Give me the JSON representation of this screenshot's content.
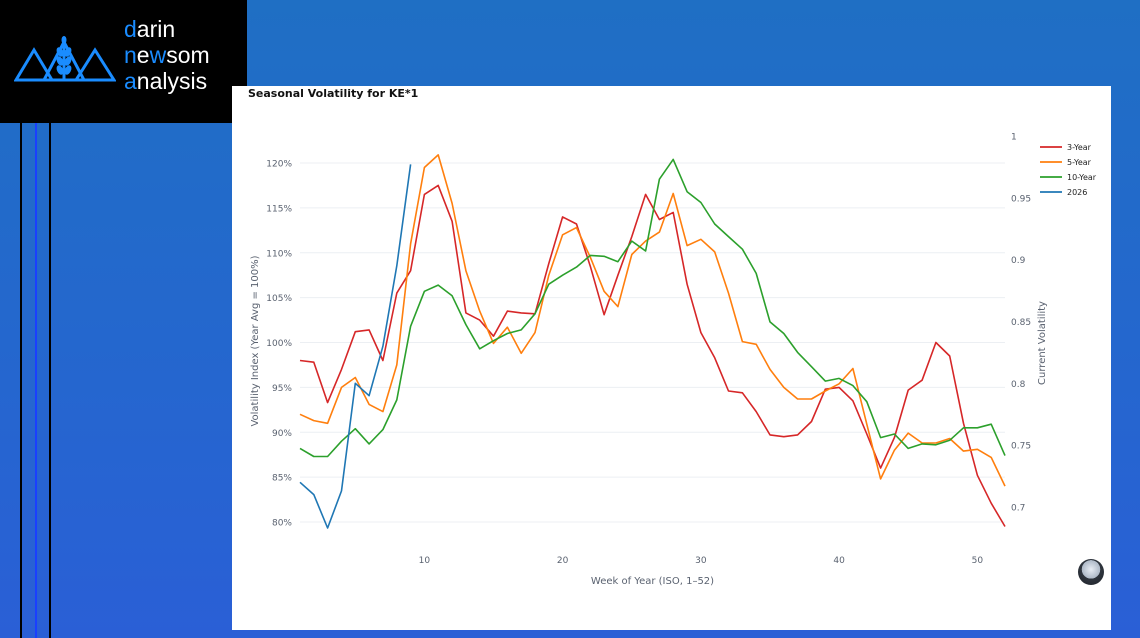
{
  "brand": {
    "line1_first": "d",
    "line1_rest": "arin",
    "line2_first": "n",
    "line2_mid": "e",
    "line2_w": "w",
    "line2_rest": "som",
    "line3_first": "a",
    "line3_rest": "nalysis",
    "accent": "#1a8cff"
  },
  "chart_data": {
    "type": "line",
    "title": "Seasonal Volatility for KE*1",
    "xlabel": "Week of Year (ISO, 1–52)",
    "ylabel": "Volatility Index (Year Avg = 100%)",
    "y2label": "Current Volatility",
    "xlim": [
      1,
      52
    ],
    "ylim": [
      78,
      122
    ],
    "y2lim": [
      0.67,
      1.0
    ],
    "x_ticks": [
      "10",
      "20",
      "30",
      "40",
      "50"
    ],
    "y_ticks": [
      "80%",
      "85%",
      "90%",
      "95%",
      "100%",
      "105%",
      "110%",
      "115%",
      "120%"
    ],
    "y2_ticks": [
      "0.7",
      "0.75",
      "0.8",
      "0.85",
      "0.9",
      "0.95",
      "1"
    ],
    "grid": true,
    "legend_position": "top-right",
    "series": [
      {
        "name": "3-Year",
        "color": "#d62728",
        "axis": "left",
        "x": [
          1,
          2,
          3,
          4,
          5,
          6,
          7,
          8,
          9,
          10,
          11,
          12,
          13,
          14,
          15,
          16,
          17,
          18,
          19,
          20,
          21,
          22,
          23,
          24,
          25,
          26,
          27,
          28,
          29,
          30,
          31,
          32,
          33,
          34,
          35,
          36,
          37,
          38,
          39,
          40,
          41,
          42,
          43,
          44,
          45,
          46,
          47,
          48,
          49,
          50,
          51,
          52
        ],
        "values": [
          98,
          97.8,
          93.3,
          97,
          101.2,
          101.4,
          98,
          105.5,
          108,
          116.5,
          117.5,
          113.5,
          103.3,
          102.5,
          100.7,
          103.5,
          103.3,
          103.2,
          108.8,
          114,
          113.2,
          108.5,
          103.1,
          107.5,
          111.8,
          116.5,
          113.7,
          114.5,
          106.5,
          101.1,
          98.3,
          94.6,
          94.4,
          92.3,
          89.7,
          89.5,
          89.7,
          91.2,
          94.8,
          95,
          93.5,
          89.8,
          86,
          89.4,
          94.7,
          95.8,
          100,
          98.5,
          91,
          85.2,
          82.1,
          79.5
        ]
      },
      {
        "name": "5-Year",
        "color": "#ff7f0e",
        "axis": "left",
        "x": [
          1,
          2,
          3,
          4,
          5,
          6,
          7,
          8,
          9,
          10,
          11,
          12,
          13,
          14,
          15,
          16,
          17,
          18,
          19,
          20,
          21,
          22,
          23,
          24,
          25,
          26,
          27,
          28,
          29,
          30,
          31,
          32,
          33,
          34,
          35,
          36,
          37,
          38,
          39,
          40,
          41,
          42,
          43,
          44,
          45,
          46,
          47,
          48,
          49,
          50,
          51,
          52
        ],
        "values": [
          92,
          91.3,
          91,
          95,
          96.1,
          93.1,
          92.3,
          97.5,
          111,
          119.5,
          120.9,
          115.5,
          108,
          103.5,
          99.9,
          101.7,
          98.8,
          101.1,
          107.5,
          112,
          112.8,
          109.5,
          105.7,
          104,
          109.8,
          111.3,
          112.3,
          116.6,
          110.8,
          111.5,
          110.1,
          105.5,
          100.1,
          99.8,
          97,
          95,
          93.7,
          93.7,
          94.6,
          95.4,
          97.1,
          90.9,
          84.8,
          88,
          89.9,
          88.8,
          88.8,
          89.3,
          87.9,
          88.1,
          87.2,
          84
        ]
      },
      {
        "name": "10-Year",
        "color": "#2ca02c",
        "axis": "left",
        "x": [
          1,
          2,
          3,
          4,
          5,
          6,
          7,
          8,
          9,
          10,
          11,
          12,
          13,
          14,
          15,
          16,
          17,
          18,
          19,
          20,
          21,
          22,
          23,
          24,
          25,
          26,
          27,
          28,
          29,
          30,
          31,
          32,
          33,
          34,
          35,
          36,
          37,
          38,
          39,
          40,
          41,
          42,
          43,
          44,
          45,
          46,
          47,
          48,
          49,
          50,
          51,
          52
        ],
        "values": [
          88.2,
          87.3,
          87.3,
          89,
          90.4,
          88.7,
          90.3,
          93.6,
          101.8,
          105.7,
          106.4,
          105.2,
          102,
          99.3,
          100.2,
          101,
          101.4,
          103.2,
          106.5,
          107.5,
          108.4,
          109.7,
          109.6,
          109,
          111.3,
          110.2,
          118.2,
          120.4,
          116.8,
          115.6,
          113.2,
          111.8,
          110.4,
          107.7,
          102.3,
          101,
          98.9,
          97.3,
          95.7,
          96,
          95.2,
          93.4,
          89.4,
          89.8,
          88.2,
          88.7,
          88.6,
          89.1,
          90.5,
          90.5,
          90.9,
          87.4
        ]
      },
      {
        "name": "2026",
        "color": "#1f77b4",
        "axis": "right",
        "x": [
          1,
          2,
          3,
          4,
          5,
          6,
          7,
          8,
          9
        ],
        "values": [
          0.72,
          0.71,
          0.683,
          0.713,
          0.8,
          0.79,
          0.83,
          0.895,
          0.977
        ]
      }
    ]
  }
}
